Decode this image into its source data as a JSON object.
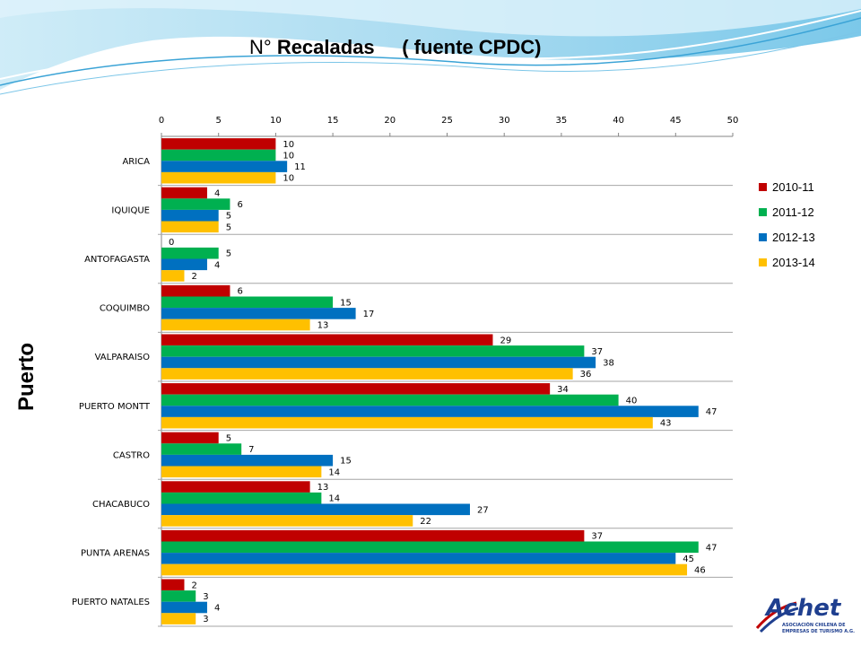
{
  "slide": {
    "title_normal": "N° ",
    "title_bold1": "Recaladas",
    "title_gap": "     ",
    "title_bold2": "( fuente CPDC)",
    "ylabel": "Puerto",
    "logo_text": "Achet",
    "logo_subtext1": "ASOCIACIÓN CHILENA DE",
    "logo_subtext2": "EMPRESAS DE TURISMO A.G."
  },
  "chart_data": {
    "type": "bar",
    "orientation": "horizontal",
    "title": "N° Recaladas ( fuente CPDC)",
    "xlabel": "",
    "ylabel": "Puerto",
    "xlim": [
      0,
      50
    ],
    "xticks": [
      0,
      5,
      10,
      15,
      20,
      25,
      30,
      35,
      40,
      45,
      50
    ],
    "x_axis_position": "top",
    "grid": false,
    "legend_position": "right",
    "categories": [
      "ARICA",
      "IQUIQUE",
      "ANTOFAGASTA",
      "COQUIMBO",
      "VALPARAISO",
      "PUERTO MONTT",
      "CASTRO",
      "CHACABUCO",
      "PUNTA ARENAS",
      "PUERTO NATALES"
    ],
    "series": [
      {
        "name": "2010-11",
        "color": "#C00000",
        "values": [
          10,
          4,
          0,
          6,
          29,
          34,
          5,
          13,
          37,
          2
        ]
      },
      {
        "name": "2011-12",
        "color": "#00B050",
        "values": [
          10,
          6,
          5,
          15,
          37,
          40,
          7,
          14,
          47,
          3
        ]
      },
      {
        "name": "2012-13",
        "color": "#0070C0",
        "values": [
          11,
          5,
          4,
          17,
          38,
          47,
          15,
          27,
          45,
          4
        ]
      },
      {
        "name": "2013-14",
        "color": "#FFC000",
        "values": [
          10,
          5,
          2,
          13,
          36,
          43,
          14,
          22,
          46,
          3
        ]
      }
    ]
  }
}
